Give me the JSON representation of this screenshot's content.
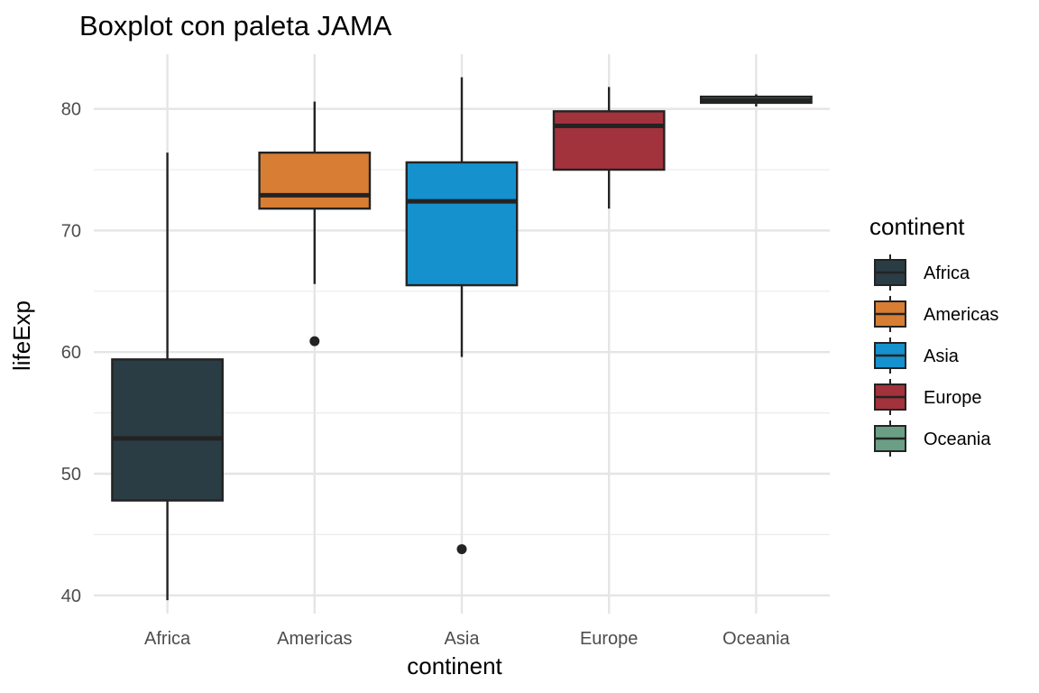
{
  "chart_data": {
    "type": "boxplot",
    "title": "Boxplot con paleta JAMA",
    "xlabel": "continent",
    "ylabel": "lifeExp",
    "ylim": [
      38.5,
      84.5
    ],
    "yticks": [
      40,
      50,
      60,
      70,
      80
    ],
    "grid": true,
    "legend": {
      "title": "continent",
      "position": "right"
    },
    "categories": [
      "Africa",
      "Americas",
      "Asia",
      "Europe",
      "Oceania"
    ],
    "boxes": [
      {
        "name": "Africa",
        "color": "#2B3D44",
        "whisker_low": 39.6,
        "q1": 47.8,
        "median": 52.9,
        "q3": 59.4,
        "whisker_high": 76.4,
        "outliers": []
      },
      {
        "name": "Americas",
        "color": "#D77E34",
        "whisker_low": 65.6,
        "q1": 71.8,
        "median": 72.9,
        "q3": 76.4,
        "whisker_high": 80.6,
        "outliers": [
          60.9
        ]
      },
      {
        "name": "Asia",
        "color": "#1591CD",
        "whisker_low": 59.6,
        "q1": 65.5,
        "median": 72.4,
        "q3": 75.6,
        "whisker_high": 82.6,
        "outliers": [
          43.8
        ]
      },
      {
        "name": "Europe",
        "color": "#A2323C",
        "whisker_low": 71.8,
        "q1": 75.0,
        "median": 78.6,
        "q3": 79.8,
        "whisker_high": 81.8,
        "outliers": []
      },
      {
        "name": "Oceania",
        "color": "#6B9F85",
        "whisker_low": 80.2,
        "q1": 80.5,
        "median": 80.7,
        "q3": 81.0,
        "whisker_high": 81.2,
        "outliers": []
      }
    ]
  }
}
